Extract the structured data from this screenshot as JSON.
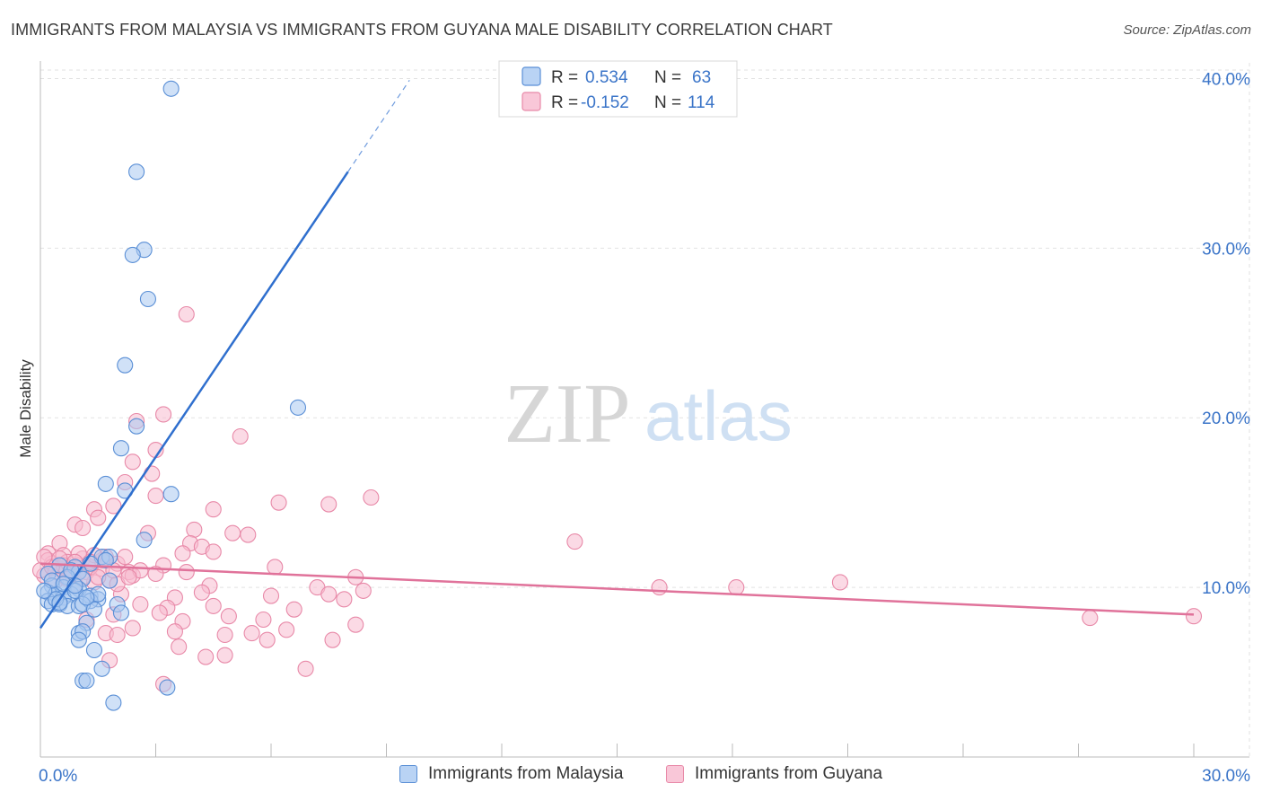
{
  "header": {
    "title": "IMMIGRANTS FROM MALAYSIA VS IMMIGRANTS FROM GUYANA MALE DISABILITY CORRELATION CHART",
    "source": "Source: ZipAtlas.com"
  },
  "watermark": {
    "part1": "ZIP",
    "part2": "atlas"
  },
  "colors": {
    "malaysia_fill": "#a9c8f0",
    "malaysia_stroke": "#5a8fd6",
    "malaysia_line": "#2f6fce",
    "guyana_fill": "#f7bcd0",
    "guyana_stroke": "#e889a8",
    "guyana_line": "#e0729a",
    "axis_text": "#3a74c8",
    "grid": "#e2e2e2"
  },
  "chart_data": {
    "type": "scatter",
    "title": "IMMIGRANTS FROM MALAYSIA VS IMMIGRANTS FROM GUYANA MALE DISABILITY CORRELATION CHART",
    "xlabel": "",
    "ylabel": "Male Disability",
    "xlim": [
      0,
      30
    ],
    "ylim": [
      0,
      40.5
    ],
    "x_tick_labels": [
      "0.0%",
      "30.0%"
    ],
    "y_ticks": [
      10,
      20,
      30,
      40
    ],
    "y_tick_labels": [
      "10.0%",
      "20.0%",
      "30.0%",
      "40.0%"
    ],
    "grid": true,
    "legend_top": [
      {
        "r_label": "R =",
        "r_value": "0.534",
        "n_label": "N =",
        "n_value": "63"
      },
      {
        "r_label": "R =",
        "r_value": "-0.152",
        "n_label": "N =",
        "n_value": "114"
      }
    ],
    "series": [
      {
        "name": "Immigrants from Malaysia",
        "R": 0.534,
        "N": 63,
        "trend": {
          "x0": 0.0,
          "y0": 7.6,
          "x1": 8.0,
          "y1": 34.5,
          "dash_x1": 9.6,
          "dash_y1": 39.9
        },
        "points": [
          [
            3.4,
            39.4
          ],
          [
            2.5,
            34.5
          ],
          [
            2.7,
            29.9
          ],
          [
            2.4,
            29.6
          ],
          [
            2.8,
            27.0
          ],
          [
            2.2,
            23.1
          ],
          [
            6.7,
            20.6
          ],
          [
            2.5,
            19.5
          ],
          [
            2.1,
            18.2
          ],
          [
            1.7,
            16.1
          ],
          [
            2.2,
            15.7
          ],
          [
            3.4,
            15.5
          ],
          [
            2.7,
            12.8
          ],
          [
            1.6,
            11.8
          ],
          [
            1.8,
            11.8
          ],
          [
            0.9,
            11.2
          ],
          [
            1.3,
            11.4
          ],
          [
            0.5,
            11.3
          ],
          [
            1.0,
            10.9
          ],
          [
            0.2,
            10.8
          ],
          [
            0.7,
            10.6
          ],
          [
            1.1,
            10.5
          ],
          [
            1.8,
            10.4
          ],
          [
            0.3,
            10.1
          ],
          [
            0.6,
            10.0
          ],
          [
            1.0,
            9.9
          ],
          [
            0.2,
            9.7
          ],
          [
            0.4,
            9.6
          ],
          [
            0.8,
            9.6
          ],
          [
            1.3,
            9.5
          ],
          [
            1.5,
            9.3
          ],
          [
            0.6,
            9.4
          ],
          [
            0.2,
            9.2
          ],
          [
            0.3,
            9.0
          ],
          [
            0.5,
            9.0
          ],
          [
            0.7,
            8.9
          ],
          [
            1.0,
            8.9
          ],
          [
            1.3,
            9.2
          ],
          [
            0.9,
            9.8
          ],
          [
            0.4,
            9.3
          ],
          [
            1.1,
            9.0
          ],
          [
            2.0,
            9.0
          ],
          [
            1.4,
            8.7
          ],
          [
            2.1,
            8.5
          ],
          [
            1.2,
            7.9
          ],
          [
            1.0,
            7.3
          ],
          [
            1.1,
            7.4
          ],
          [
            1.0,
            6.9
          ],
          [
            1.4,
            6.3
          ],
          [
            1.6,
            5.2
          ],
          [
            1.1,
            4.5
          ],
          [
            1.2,
            4.5
          ],
          [
            3.3,
            4.1
          ],
          [
            1.9,
            3.2
          ],
          [
            0.8,
            11.0
          ],
          [
            0.3,
            10.4
          ],
          [
            1.5,
            9.6
          ],
          [
            0.6,
            10.2
          ],
          [
            0.1,
            9.8
          ],
          [
            1.7,
            11.6
          ],
          [
            0.9,
            10.1
          ],
          [
            0.5,
            9.1
          ],
          [
            1.2,
            9.4
          ]
        ]
      },
      {
        "name": "Immigrants from Guyana",
        "R": -0.152,
        "N": 114,
        "trend": {
          "x0": 0.0,
          "y0": 11.4,
          "x1": 30.0,
          "y1": 8.4
        },
        "points": [
          [
            3.8,
            26.1
          ],
          [
            3.2,
            20.2
          ],
          [
            2.5,
            19.8
          ],
          [
            5.2,
            18.9
          ],
          [
            3.0,
            18.1
          ],
          [
            2.4,
            17.4
          ],
          [
            2.9,
            16.7
          ],
          [
            2.2,
            16.2
          ],
          [
            3.0,
            15.4
          ],
          [
            6.2,
            15.0
          ],
          [
            7.5,
            14.9
          ],
          [
            8.6,
            15.3
          ],
          [
            1.4,
            14.6
          ],
          [
            1.5,
            14.1
          ],
          [
            1.9,
            14.8
          ],
          [
            4.5,
            14.6
          ],
          [
            0.9,
            13.7
          ],
          [
            1.1,
            13.5
          ],
          [
            2.8,
            13.2
          ],
          [
            4.0,
            13.4
          ],
          [
            5.0,
            13.2
          ],
          [
            5.4,
            13.1
          ],
          [
            13.9,
            12.7
          ],
          [
            0.5,
            12.6
          ],
          [
            3.9,
            12.6
          ],
          [
            4.2,
            12.4
          ],
          [
            0.2,
            12.0
          ],
          [
            0.6,
            11.9
          ],
          [
            1.1,
            11.7
          ],
          [
            1.7,
            11.8
          ],
          [
            2.0,
            11.4
          ],
          [
            3.2,
            11.3
          ],
          [
            4.5,
            12.1
          ],
          [
            3.7,
            12.0
          ],
          [
            6.1,
            11.2
          ],
          [
            0.3,
            11.4
          ],
          [
            0.5,
            11.1
          ],
          [
            0.8,
            11.0
          ],
          [
            1.2,
            10.9
          ],
          [
            1.6,
            11.1
          ],
          [
            2.3,
            10.9
          ],
          [
            2.4,
            10.7
          ],
          [
            3.0,
            10.8
          ],
          [
            3.8,
            10.9
          ],
          [
            8.2,
            10.6
          ],
          [
            0.1,
            10.7
          ],
          [
            0.4,
            10.4
          ],
          [
            0.9,
            10.2
          ],
          [
            1.4,
            10.3
          ],
          [
            1.8,
            10.4
          ],
          [
            4.4,
            10.1
          ],
          [
            7.2,
            10.0
          ],
          [
            8.4,
            9.8
          ],
          [
            16.1,
            10.0
          ],
          [
            18.1,
            10.0
          ],
          [
            20.8,
            10.3
          ],
          [
            2.1,
            9.6
          ],
          [
            3.5,
            9.4
          ],
          [
            4.2,
            9.7
          ],
          [
            6.0,
            9.5
          ],
          [
            7.9,
            9.3
          ],
          [
            7.5,
            9.6
          ],
          [
            2.6,
            9.0
          ],
          [
            3.3,
            8.8
          ],
          [
            4.5,
            8.9
          ],
          [
            6.6,
            8.7
          ],
          [
            1.9,
            8.4
          ],
          [
            3.1,
            8.5
          ],
          [
            4.9,
            8.3
          ],
          [
            5.8,
            8.1
          ],
          [
            3.7,
            8.0
          ],
          [
            2.4,
            7.6
          ],
          [
            3.5,
            7.4
          ],
          [
            4.8,
            7.2
          ],
          [
            5.5,
            7.3
          ],
          [
            6.4,
            7.5
          ],
          [
            8.2,
            7.8
          ],
          [
            5.9,
            6.9
          ],
          [
            3.6,
            6.5
          ],
          [
            4.3,
            5.9
          ],
          [
            7.6,
            6.9
          ],
          [
            4.8,
            6.0
          ],
          [
            6.9,
            5.2
          ],
          [
            3.2,
            4.3
          ],
          [
            27.3,
            8.2
          ],
          [
            30.0,
            8.3
          ],
          [
            0.0,
            11.0
          ],
          [
            0.2,
            11.6
          ],
          [
            0.7,
            11.5
          ],
          [
            1.0,
            11.3
          ],
          [
            1.3,
            11.2
          ],
          [
            2.6,
            11.0
          ],
          [
            0.4,
            10.9
          ],
          [
            0.6,
            11.3
          ],
          [
            0.8,
            10.8
          ],
          [
            1.5,
            10.6
          ],
          [
            2.0,
            10.2
          ],
          [
            0.3,
            11.2
          ],
          [
            1.0,
            12.0
          ],
          [
            1.6,
            11.6
          ],
          [
            2.2,
            11.8
          ],
          [
            0.1,
            11.8
          ],
          [
            0.9,
            11.5
          ],
          [
            1.9,
            11.0
          ],
          [
            1.4,
            11.9
          ],
          [
            0.5,
            11.7
          ],
          [
            1.7,
            7.3
          ],
          [
            1.2,
            8.1
          ],
          [
            2.3,
            10.6
          ],
          [
            0.7,
            10.5
          ],
          [
            1.8,
            5.7
          ],
          [
            2.0,
            7.2
          ],
          [
            1.1,
            10.6
          ],
          [
            1.3,
            11.5
          ]
        ]
      }
    ]
  },
  "legend_bottom": [
    {
      "label": "Immigrants from Malaysia"
    },
    {
      "label": "Immigrants from Guyana"
    }
  ]
}
